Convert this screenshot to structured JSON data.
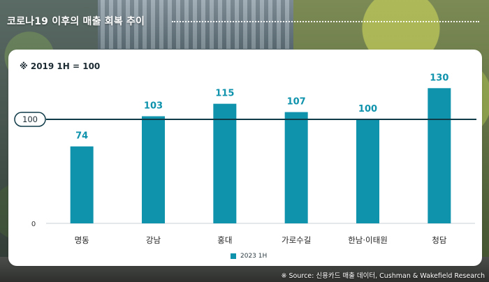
{
  "headline": "코로나19 이후의 매출 회복 추이",
  "note": "※ 2019 1H = 100",
  "source": "※ Source: 신용카드 매출 데이터, Cushman & Wakefield Research",
  "colors": {
    "bar": "#0f93ad",
    "reference_line": "#0f3a48",
    "axis": "#c9d1d4",
    "value_label": "#0f93ad"
  },
  "chart_data": {
    "type": "bar",
    "categories": [
      "명동",
      "강남",
      "홍대",
      "가로수길",
      "한남·이태원",
      "청담"
    ],
    "series": [
      {
        "name": "2023 1H",
        "values": [
          74,
          103,
          115,
          107,
          100,
          130
        ]
      }
    ],
    "reference_line": {
      "value": 100,
      "label": "100"
    },
    "yticks": [
      "0"
    ],
    "ylim": [
      0,
      136
    ],
    "legend": "bottom-center",
    "grid": false
  }
}
